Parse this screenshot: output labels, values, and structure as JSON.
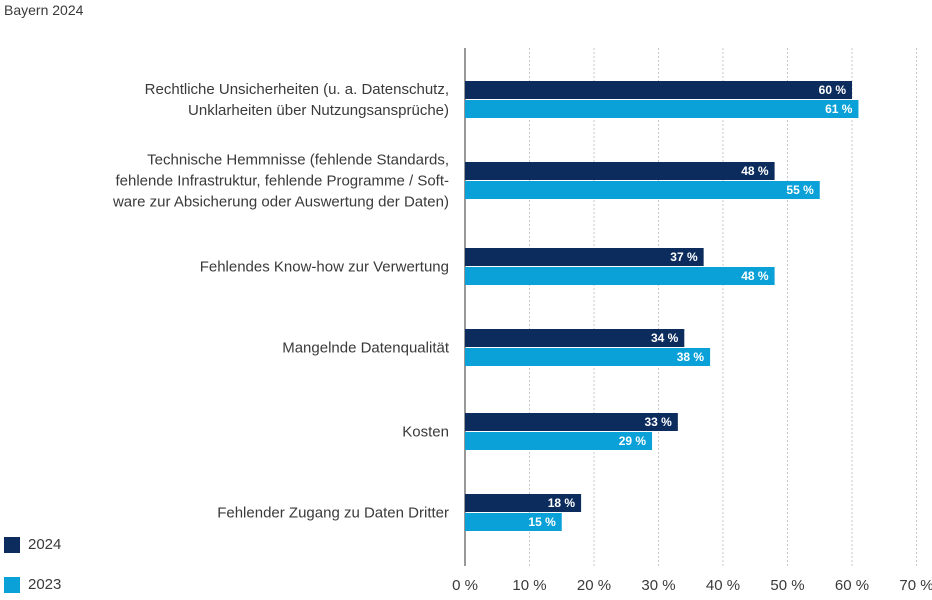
{
  "subtitle": "Bayern 2024",
  "colors": {
    "2024": "#0d2c5e",
    "2023": "#0aa1d8",
    "grid": "#c8c8c8",
    "axis": "#555555"
  },
  "chart_data": {
    "type": "bar",
    "orientation": "horizontal",
    "title": "",
    "subtitle": "Bayern 2024",
    "xlim": [
      0,
      70
    ],
    "grid": true,
    "legend_position": "bottom-left",
    "categories": [
      [
        "Rechtliche Unsicherheiten (u. a. Datenschutz,",
        "Unklarheiten über Nutzungsansprüche)"
      ],
      [
        "Technische Hemmnisse (fehlende Standards,",
        "fehlende Infrastruktur, fehlende Programme / Soft-",
        "ware zur Absicherung oder Auswertung der Daten)"
      ],
      [
        "Fehlendes Know-how zur Verwertung"
      ],
      [
        "Mangelnde Datenqualität"
      ],
      [
        "Kosten"
      ],
      [
        "Fehlender Zugang zu Daten Dritter"
      ]
    ],
    "series": [
      {
        "name": "2024",
        "values": [
          60,
          48,
          37,
          34,
          33,
          18
        ],
        "labels": [
          "60 %",
          "48 %",
          "37 %",
          "34 %",
          "33 %",
          "18 %"
        ]
      },
      {
        "name": "2023",
        "values": [
          61,
          55,
          48,
          38,
          29,
          15
        ],
        "labels": [
          "61 %",
          "55 %",
          "48 %",
          "38 %",
          "29 %",
          "15 %"
        ]
      }
    ],
    "ticks": [
      0,
      10,
      20,
      30,
      40,
      50,
      60,
      70
    ],
    "tick_labels": [
      "0 %",
      "10 %",
      "20 %",
      "30 %",
      "40 %",
      "50 %",
      "60 %",
      "70 %"
    ]
  }
}
